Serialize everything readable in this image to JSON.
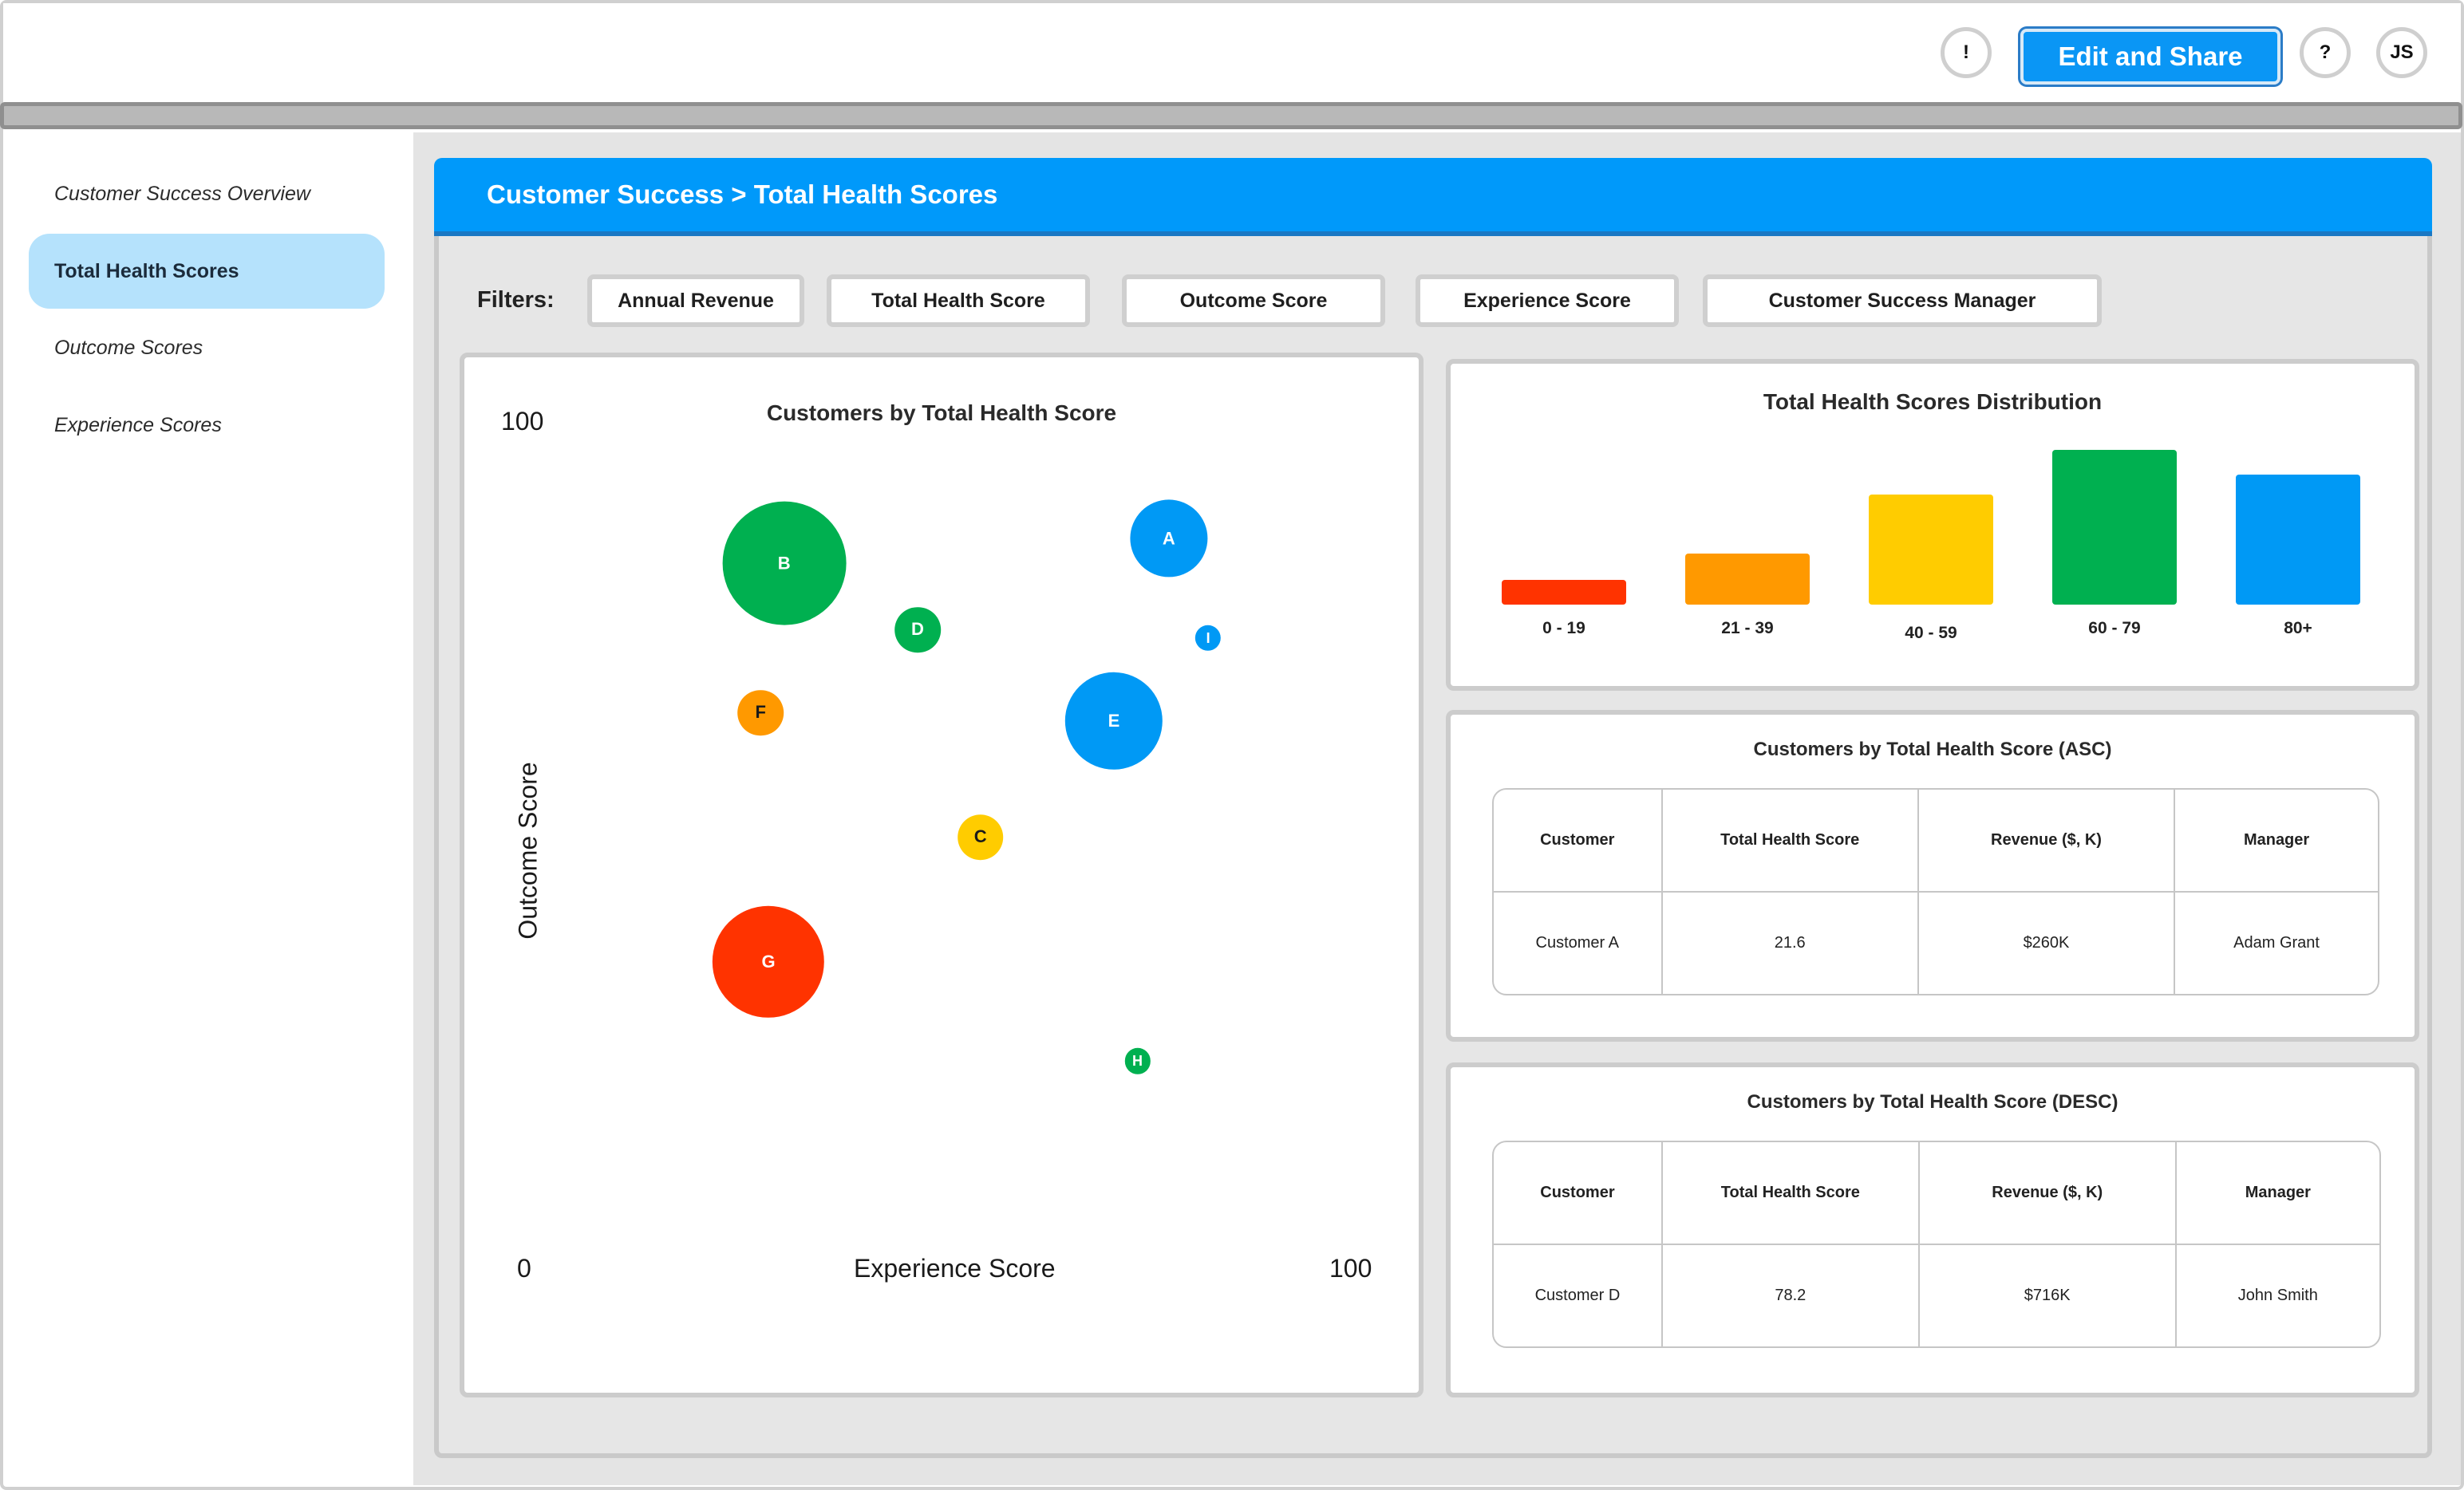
{
  "header": {
    "alert_label": "!",
    "edit_share_label": "Edit and Share",
    "help_label": "?",
    "avatar_initials": "JS"
  },
  "sidebar": {
    "items": [
      {
        "label": "Customer Success Overview",
        "active": false
      },
      {
        "label": "Total Health Scores",
        "active": true
      },
      {
        "label": "Outcome Scores",
        "active": false
      },
      {
        "label": "Experience Scores",
        "active": false
      }
    ]
  },
  "main": {
    "breadcrumb": "Customer Success > Total Health Scores",
    "filters_label": "Filters:",
    "filters": [
      "Annual Revenue",
      "Total Health Score",
      "Outcome Score",
      "Experience Score",
      "Customer Success Manager"
    ]
  },
  "colors": {
    "red": "#ff3300",
    "orange": "#ff9900",
    "yellow": "#ffcc00",
    "green": "#00b050",
    "blue": "#0099f5"
  },
  "bubble_chart": {
    "title": "Customers by Total Health Score",
    "xlabel": "Experience Score",
    "ylabel": "Outcome Score",
    "x_min_label": "0",
    "x_max_label": "100",
    "y_min_label": "0",
    "y_max_label": "100"
  },
  "chart_data": [
    {
      "type": "scatter",
      "title": "Customers by Total Health Score",
      "xlabel": "Experience Score",
      "ylabel": "Outcome Score",
      "xlim": [
        0,
        100
      ],
      "ylim": [
        0,
        100
      ],
      "points": [
        {
          "label": "A",
          "x": 82,
          "y": 82,
          "size": 2.7,
          "color": "#0099f5"
        },
        {
          "label": "B",
          "x": 33,
          "y": 79,
          "size": 4.3,
          "color": "#00b050"
        },
        {
          "label": "C",
          "x": 58,
          "y": 46,
          "size": 1.6,
          "color": "#ffcc00"
        },
        {
          "label": "D",
          "x": 50,
          "y": 71,
          "size": 1.6,
          "color": "#00b050"
        },
        {
          "label": "E",
          "x": 75,
          "y": 60,
          "size": 3.4,
          "color": "#0099f5"
        },
        {
          "label": "F",
          "x": 30,
          "y": 61,
          "size": 1.6,
          "color": "#ff9900"
        },
        {
          "label": "G",
          "x": 31,
          "y": 31,
          "size": 3.9,
          "color": "#ff3300"
        },
        {
          "label": "H",
          "x": 78,
          "y": 19,
          "size": 0.9,
          "color": "#00b050"
        },
        {
          "label": "I",
          "x": 87,
          "y": 70,
          "size": 0.9,
          "color": "#0099f5"
        }
      ]
    },
    {
      "type": "bar",
      "title": "Total Health Scores Distribution",
      "categories": [
        "0 - 19",
        "21 - 39",
        "40 - 59",
        "60 - 79",
        "80+"
      ],
      "values": [
        16,
        33,
        71,
        100,
        84
      ],
      "colors": [
        "#ff3300",
        "#ff9900",
        "#ffcc00",
        "#00b050",
        "#0099f5"
      ]
    }
  ],
  "table_asc": {
    "title": "Customers by Total Health Score (ASC)",
    "headers": [
      "Customer",
      "Total Health Score",
      "Revenue ($, K)",
      "Manager"
    ],
    "rows": [
      [
        "Customer A",
        "21.6",
        "$260K",
        "Adam Grant"
      ]
    ]
  },
  "table_desc": {
    "title": "Customers by Total Health Score (DESC)",
    "headers": [
      "Customer",
      "Total Health Score",
      "Revenue ($, K)",
      "Manager"
    ],
    "rows": [
      [
        "Customer D",
        "78.2",
        "$716K",
        "John Smith"
      ]
    ]
  }
}
